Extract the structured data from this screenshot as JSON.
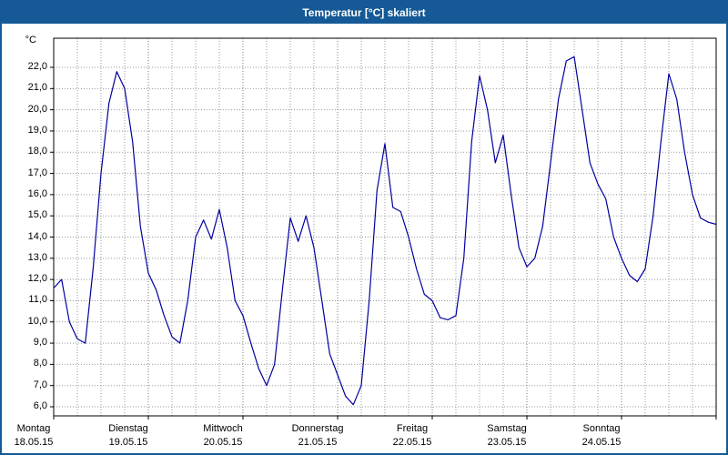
{
  "window": {
    "title": "Temperatur [°C] skaliert"
  },
  "colors": {
    "titlebar_bg": "#155a96",
    "titlebar_text": "#ffffff",
    "frame_border": "#155a96",
    "plot_bg": "#ffffff",
    "axis": "#000000",
    "grid": "#9a9a9a",
    "grid_day": "#777777",
    "line": "#0000a0"
  },
  "chart_data": {
    "type": "line",
    "title": "Temperatur [°C] skaliert",
    "ylabel_unit": "°C",
    "ylim": [
      6.0,
      22.0
    ],
    "y_tick_step": 1.0,
    "y_tick_labels": [
      "22,0",
      "21,0",
      "20,0",
      "19,0",
      "18,0",
      "17,0",
      "16,0",
      "15,0",
      "14,0",
      "13,0",
      "12,0",
      "11,0",
      "10,0",
      "9,0",
      "8,0",
      "7,0",
      "6,0"
    ],
    "x_days": [
      {
        "name": "Montag",
        "date": "18.05.15"
      },
      {
        "name": "Dienstag",
        "date": "19.05.15"
      },
      {
        "name": "Mittwoch",
        "date": "20.05.15"
      },
      {
        "name": "Donnerstag",
        "date": "21.05.15"
      },
      {
        "name": "Freitag",
        "date": "22.05.15"
      },
      {
        "name": "Samstag",
        "date": "23.05.15"
      },
      {
        "name": "Sonntag",
        "date": "24.05.15"
      }
    ],
    "x_total_hours": 168,
    "sample_interval_hours": 2,
    "grid": {
      "style": "dotted",
      "horizontal_step_deg": 1,
      "vertical_step_hours": 6
    },
    "series": [
      {
        "name": "Temperatur [°C]",
        "color": "#0000a0",
        "values": [
          11.6,
          12.0,
          10.0,
          9.2,
          9.0,
          12.5,
          17.0,
          20.3,
          21.8,
          21.0,
          18.5,
          14.5,
          12.3,
          11.5,
          10.3,
          9.3,
          9.0,
          11.0,
          14.0,
          14.8,
          13.9,
          15.3,
          13.5,
          11.0,
          10.3,
          9.0,
          7.8,
          7.0,
          8.0,
          11.5,
          14.9,
          13.8,
          15.0,
          13.5,
          11.0,
          8.5,
          7.5,
          6.5,
          6.1,
          7.0,
          11.0,
          16.2,
          18.4,
          15.4,
          15.2,
          14.0,
          12.5,
          11.3,
          11.0,
          10.2,
          10.1,
          10.3,
          13.0,
          18.5,
          21.6,
          20.0,
          17.5,
          18.8,
          16.0,
          13.5,
          12.6,
          13.0,
          14.5,
          17.5,
          20.5,
          22.3,
          22.5,
          20.0,
          17.5,
          16.5,
          15.8,
          14.0,
          13.0,
          12.2,
          11.9,
          12.5,
          15.0,
          18.5,
          21.7,
          20.5,
          18.0,
          16.0,
          14.9,
          14.7,
          14.6
        ]
      }
    ]
  }
}
